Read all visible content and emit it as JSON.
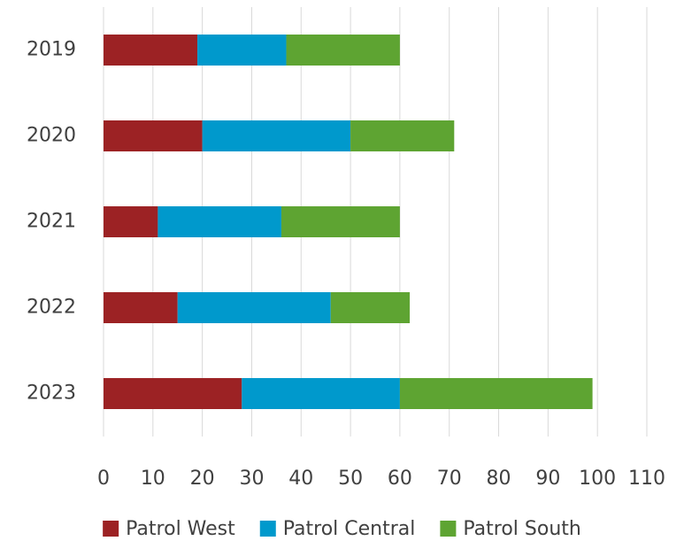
{
  "chart_data": {
    "type": "stacked_bar_horizontal",
    "categories": [
      "2019",
      "2020",
      "2021",
      "2022",
      "2023"
    ],
    "series": [
      {
        "name": "Patrol West",
        "color": "#9c2224",
        "values": [
          19,
          20,
          11,
          15,
          28
        ]
      },
      {
        "name": "Patrol Central",
        "color": "#0099cc",
        "values": [
          18,
          30,
          25,
          31,
          32
        ]
      },
      {
        "name": "Patrol South",
        "color": "#5ea432",
        "values": [
          23,
          21,
          24,
          16,
          39
        ]
      }
    ],
    "xlim": [
      0,
      110
    ],
    "xticks": [
      0,
      10,
      20,
      30,
      40,
      50,
      60,
      70,
      80,
      90,
      100,
      110
    ],
    "grid": true,
    "legend": "bottom"
  }
}
